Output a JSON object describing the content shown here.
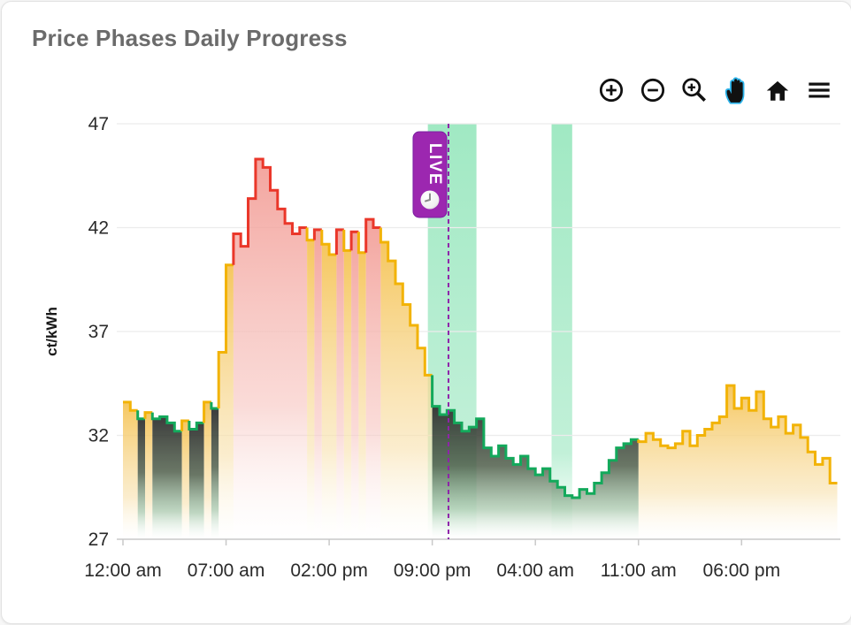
{
  "title": "Price Phases Daily Progress",
  "toolbar": {
    "icons": [
      "zoom-in-icon",
      "zoom-out-icon",
      "box-zoom-icon",
      "pan-icon",
      "reset-home-icon",
      "menu-icon"
    ],
    "active_tool": "pan"
  },
  "colors": {
    "normal": "#f2b307",
    "high": "#ea372a",
    "low": "#13a95b",
    "band": "#66db9e",
    "live": "#9c27b0",
    "live_line": "#8e24aa",
    "grid": "#ececec",
    "axis": "#c9c9c9",
    "text": "#2a2a2a",
    "title": "#6b6b6b",
    "toolbar": "#111111",
    "hand_blue": "#2cb3ea"
  },
  "chart_data": {
    "type": "area",
    "title": "Price Phases Daily Progress",
    "xlabel": "",
    "ylabel": "ct/kWh",
    "ylim": [
      27,
      47
    ],
    "y_ticks": [
      27,
      32,
      37,
      42,
      47
    ],
    "x_tick_labels": [
      "12:00 am",
      "07:00 am",
      "02:00 pm",
      "09:00 pm",
      "04:00 am",
      "11:00 am",
      "06:00 pm"
    ],
    "x_tick_hours": [
      0,
      7,
      14,
      21,
      28,
      35,
      42
    ],
    "grid": "horizontal-only",
    "legend": "none",
    "phase_meaning": {
      "y": "normal-price",
      "r": "high-price",
      "g": "low-price"
    },
    "highlight_bands_hours": [
      [
        20.7,
        24.0
      ],
      [
        29.1,
        30.5
      ]
    ],
    "live_line_hour": 22.1,
    "live_label": "LIVE",
    "series": {
      "name": "electricity-price-ct-per-kwh",
      "t0": 0,
      "step_hours": 0.5,
      "values": [
        33.6,
        33.2,
        32.8,
        33.1,
        32.8,
        32.9,
        32.6,
        32.2,
        32.7,
        32.3,
        32.6,
        33.6,
        33.3,
        36.0,
        40.2,
        41.7,
        41.1,
        43.4,
        45.3,
        44.9,
        43.8,
        42.9,
        42.2,
        41.7,
        42.0,
        41.4,
        41.9,
        41.2,
        40.7,
        41.9,
        40.9,
        41.8,
        40.8,
        42.4,
        42.0,
        41.3,
        40.4,
        39.3,
        38.3,
        37.3,
        36.2,
        34.9,
        33.4,
        33.0,
        33.2,
        32.6,
        32.2,
        32.4,
        32.8,
        31.4,
        31.0,
        31.5,
        30.9,
        30.6,
        31.0,
        30.4,
        30.1,
        30.4,
        29.8,
        29.5,
        29.1,
        29.0,
        29.4,
        29.2,
        29.7,
        30.2,
        30.8,
        31.4,
        31.6,
        31.8,
        31.7,
        32.1,
        31.8,
        31.5,
        31.4,
        31.6,
        32.2,
        31.5,
        32.0,
        32.3,
        32.6,
        32.9,
        34.4,
        33.3,
        33.8,
        33.2,
        34.1,
        32.8,
        32.4,
        32.9,
        32.1,
        32.5,
        31.9,
        31.2,
        30.6,
        30.9,
        29.7
      ],
      "phases": "yygyggggyggygyyrrrrrrrrrryryyryryrryyyyyyyggggggggggggggggggggggggggggyyyyyyyyyyyyyyyyyyyyyyyyyyy"
    }
  }
}
